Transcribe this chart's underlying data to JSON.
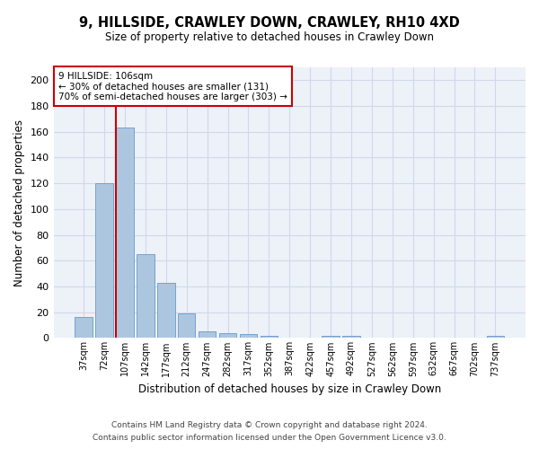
{
  "title": "9, HILLSIDE, CRAWLEY DOWN, CRAWLEY, RH10 4XD",
  "subtitle": "Size of property relative to detached houses in Crawley Down",
  "xlabel": "Distribution of detached houses by size in Crawley Down",
  "ylabel": "Number of detached properties",
  "bar_color": "#adc6e0",
  "bar_edge_color": "#6699cc",
  "grid_color": "#d0d8ea",
  "background_color": "#edf1f8",
  "annotation_box_color": "#cc0000",
  "annotation_line1": "9 HILLSIDE: 106sqm",
  "annotation_line2": "← 30% of detached houses are smaller (131)",
  "annotation_line3": "70% of semi-detached houses are larger (303) →",
  "vline_color": "#cc0000",
  "categories": [
    "37sqm",
    "72sqm",
    "107sqm",
    "142sqm",
    "177sqm",
    "212sqm",
    "247sqm",
    "282sqm",
    "317sqm",
    "352sqm",
    "387sqm",
    "422sqm",
    "457sqm",
    "492sqm",
    "527sqm",
    "562sqm",
    "597sqm",
    "632sqm",
    "667sqm",
    "702sqm",
    "737sqm"
  ],
  "values": [
    16,
    120,
    163,
    65,
    43,
    19,
    5,
    4,
    3,
    2,
    0,
    0,
    2,
    2,
    0,
    0,
    0,
    0,
    0,
    0,
    2
  ],
  "ylim": [
    0,
    210
  ],
  "yticks": [
    0,
    20,
    40,
    60,
    80,
    100,
    120,
    140,
    160,
    180,
    200
  ],
  "footer_line1": "Contains HM Land Registry data © Crown copyright and database right 2024.",
  "footer_line2": "Contains public sector information licensed under the Open Government Licence v3.0.",
  "figsize": [
    6.0,
    5.0
  ],
  "dpi": 100
}
